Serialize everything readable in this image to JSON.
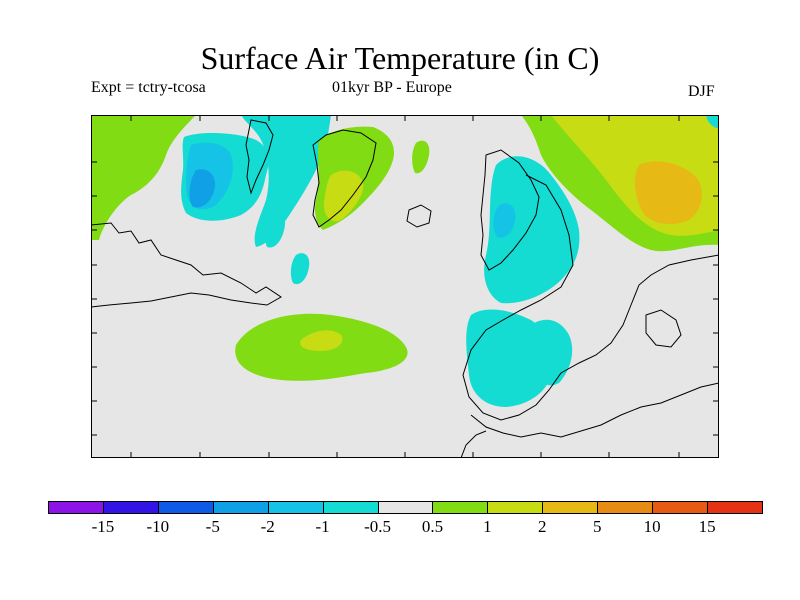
{
  "title": "Surface Air Temperature (in C)",
  "experiment_label": "Expt = tctry-tcosa",
  "period_label": "01kyr BP - Europe",
  "season_label": "DJF",
  "colors": {
    "background_field": "#e6e6e6",
    "coastline": "#000000"
  },
  "legend": {
    "colors": [
      "#8c14e6",
      "#3214e6",
      "#0f5ae6",
      "#0fa0e6",
      "#14c3e6",
      "#14dcd2",
      "#e6e6e6",
      "#82dc14",
      "#c8dc14",
      "#e6b914",
      "#e68c14",
      "#e65a14",
      "#e63214"
    ],
    "tick_labels": [
      "-15",
      "-10",
      "-5",
      "-2",
      "-1",
      "-0.5",
      "0.5",
      "1",
      "2",
      "5",
      "10",
      "15"
    ]
  }
}
